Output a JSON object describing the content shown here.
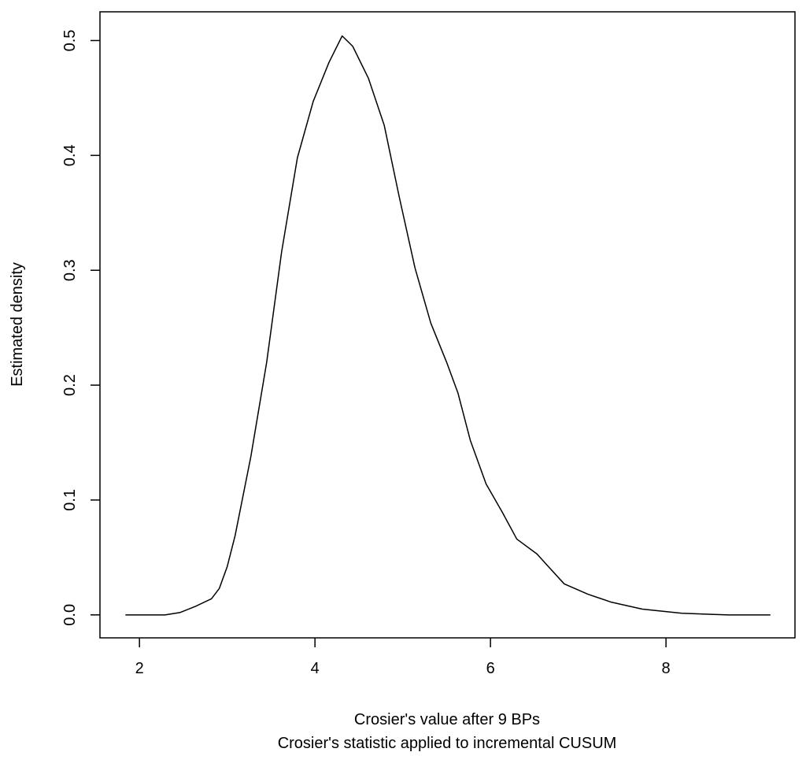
{
  "chart_data": {
    "type": "line",
    "xlabel": "Crosier's value after 9 BPs",
    "subtitle": "Crosier's statistic applied to incremental CUSUM",
    "ylabel": "Estimated density",
    "x": [
      1.84,
      2.29,
      2.46,
      2.64,
      2.82,
      2.91,
      3.0,
      3.09,
      3.27,
      3.45,
      3.62,
      3.8,
      3.98,
      4.16,
      4.31,
      4.43,
      4.61,
      4.79,
      4.96,
      5.14,
      5.32,
      5.5,
      5.63,
      5.77,
      5.95,
      6.13,
      6.3,
      6.53,
      6.66,
      6.84,
      7.11,
      7.38,
      7.73,
      8.18,
      8.71,
      9.19
    ],
    "series": [
      {
        "color": "#000000",
        "values": [
          0,
          0,
          0.002,
          0.0075,
          0.014,
          0.023,
          0.042,
          0.069,
          0.138,
          0.22,
          0.316,
          0.398,
          0.447,
          0.481,
          0.504,
          0.495,
          0.467,
          0.426,
          0.364,
          0.302,
          0.254,
          0.22,
          0.193,
          0.152,
          0.114,
          0.09,
          0.066,
          0.053,
          0.042,
          0.027,
          0.018,
          0.011,
          0.005,
          0.0014,
          0,
          0
        ]
      }
    ],
    "xlim": [
      1.55,
      9.47
    ],
    "xticks": [
      2,
      4,
      6,
      8
    ],
    "ylim": [
      -0.02,
      0.525
    ],
    "yticks": [
      {
        "value": 0,
        "label": "0.0"
      },
      0.1,
      0.2,
      0.3,
      0.4,
      0.5
    ]
  }
}
